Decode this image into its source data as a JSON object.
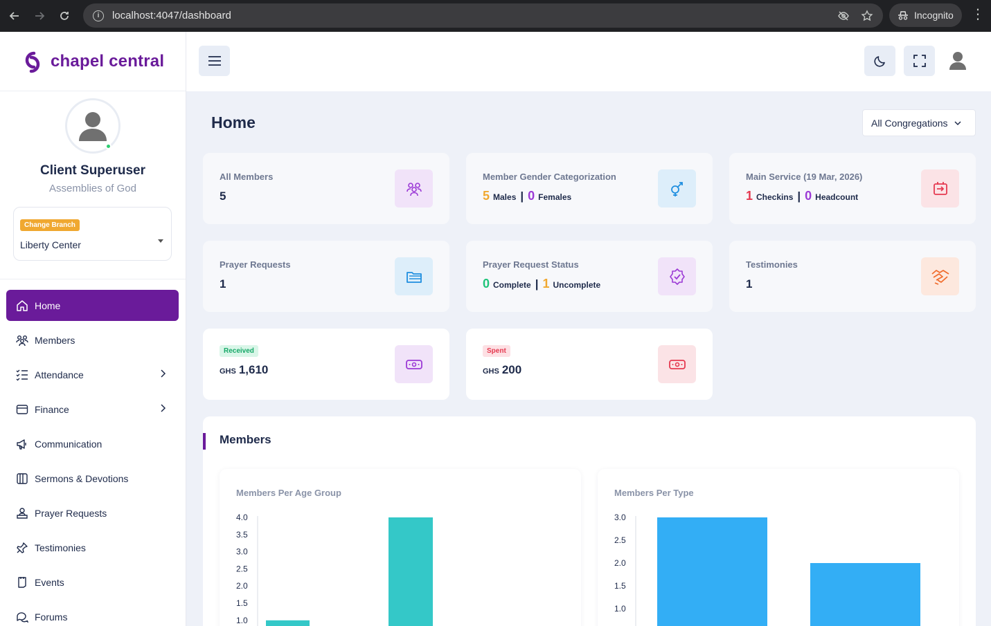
{
  "browser": {
    "url": "localhost:4047/dashboard",
    "incognito_label": "Incognito"
  },
  "sidebar": {
    "brand": "chapel central",
    "user_name": "Client Superuser",
    "user_org": "Assemblies of God",
    "branch_badge": "Change Branch",
    "branch_value": "Liberty Center",
    "items": [
      {
        "label": "Home",
        "icon": "home-icon",
        "active": true
      },
      {
        "label": "Members",
        "icon": "users-icon"
      },
      {
        "label": "Attendance",
        "icon": "checklist-icon",
        "has_submenu": true
      },
      {
        "label": "Finance",
        "icon": "wallet-icon",
        "has_submenu": true
      },
      {
        "label": "Communication",
        "icon": "megaphone-icon"
      },
      {
        "label": "Sermons & Devotions",
        "icon": "books-icon"
      },
      {
        "label": "Prayer Requests",
        "icon": "hands-icon"
      },
      {
        "label": "Testimonies",
        "icon": "pin-icon"
      },
      {
        "label": "Events",
        "icon": "calendar-icon"
      },
      {
        "label": "Forums",
        "icon": "chat-icon"
      }
    ]
  },
  "main": {
    "title": "Home",
    "congregation_select": "All Congregations",
    "cards": {
      "all_members": {
        "label": "All Members",
        "value": "5"
      },
      "gender": {
        "label": "Member Gender Categorization",
        "males": "5",
        "males_label": "Males",
        "females": "0",
        "females_label": "Females"
      },
      "main_service": {
        "label": "Main Service (19 Mar, 2026)",
        "checkins": "1",
        "checkins_label": "Checkins",
        "headcount": "0",
        "headcount_label": "Headcount"
      },
      "prayer_requests": {
        "label": "Prayer Requests",
        "value": "1"
      },
      "prayer_status": {
        "label": "Prayer Request Status",
        "complete": "0",
        "complete_label": "Complete",
        "uncomplete": "1",
        "uncomplete_label": "Uncomplete"
      },
      "testimonies": {
        "label": "Testimonies",
        "value": "1"
      },
      "received": {
        "badge": "Received",
        "currency": "GHS",
        "amount": "1,610"
      },
      "spent": {
        "badge": "Spent",
        "currency": "GHS",
        "amount": "200"
      }
    },
    "members_section": {
      "title": "Members"
    }
  },
  "colors": {
    "brand": "#6a1b9a",
    "teal_bar": "#34c8c8",
    "blue_bar": "#33aef5",
    "orange": "#f0a830",
    "red": "#e53950",
    "purple": "#9c3ad6",
    "green": "#1fc47a"
  },
  "chart_data": [
    {
      "type": "bar",
      "title": "Members Per Age Group",
      "categories": [
        "",
        ""
      ],
      "values": [
        1,
        4
      ],
      "ylim": [
        1.0,
        4.0
      ],
      "yticks": [
        "4.0",
        "3.5",
        "3.0",
        "2.5",
        "2.0",
        "1.5",
        "1.0"
      ],
      "color": "#34c8c8"
    },
    {
      "type": "bar",
      "title": "Members Per Type",
      "categories": [
        "",
        ""
      ],
      "values": [
        3,
        2
      ],
      "ylim": [
        1.0,
        3.0
      ],
      "yticks": [
        "3.0",
        "2.5",
        "2.0",
        "1.5",
        "1.0"
      ],
      "color": "#33aef5"
    }
  ]
}
